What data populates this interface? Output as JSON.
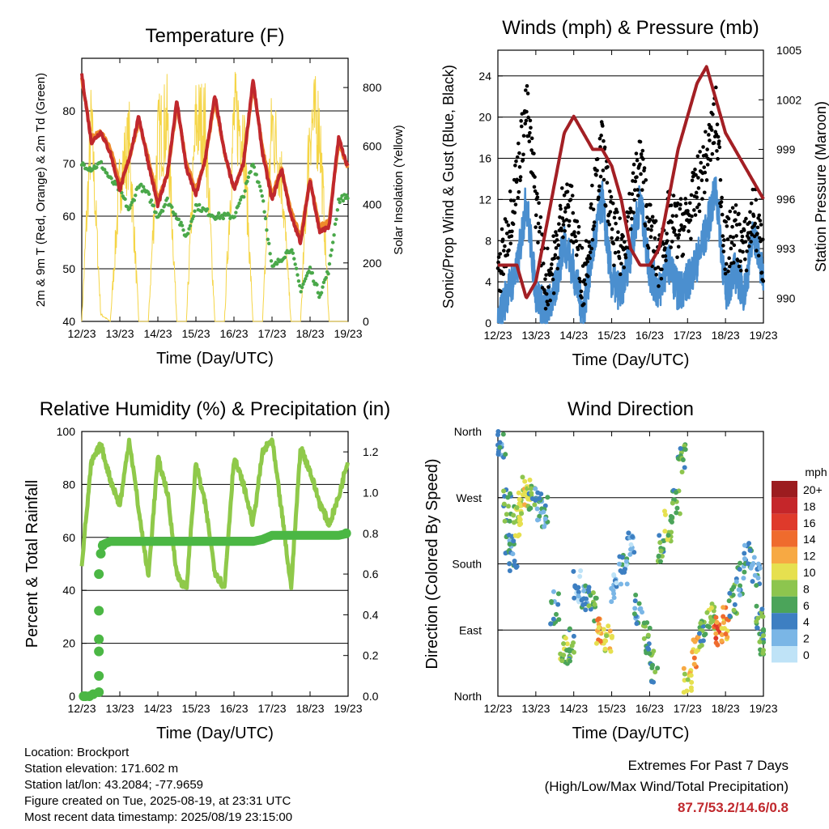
{
  "panels": {
    "temperature": {
      "title": "Temperature (F)",
      "ylabel_left": "2m & 9m T (Red, Orange) & 2m Td (Green)",
      "ylabel_right": "Solar Insolation (Yellow)",
      "xlabel": "Time (Day/UTC)",
      "ylim": [
        40,
        90
      ],
      "y2lim": [
        0,
        900
      ],
      "yticks": [
        "40",
        "50",
        "60",
        "70",
        "80"
      ],
      "y2ticks": [
        "0",
        "200",
        "400",
        "600",
        "800"
      ]
    },
    "winds": {
      "title": "Winds (mph) & Pressure (mb)",
      "ylabel_left": "Sonic/Prop Wind & Gust (Blue, Black)",
      "ylabel_right": "Station Pressure (Maroon)",
      "xlabel": "Time (Day/UTC)",
      "ylim": [
        0,
        26.5
      ],
      "y2lim": [
        988.5,
        1005
      ],
      "yticks": [
        "0",
        "4",
        "8",
        "12",
        "16",
        "20",
        "24"
      ],
      "y2ticks": [
        "990",
        "993",
        "996",
        "999",
        "1002",
        "1005"
      ]
    },
    "humidity": {
      "title": "Relative Humidity (%) & Precipitation (in)",
      "ylabel_left": "Percent & Total Rainfall",
      "xlabel": "Time (Day/UTC)",
      "ylim": [
        0,
        100
      ],
      "y2lim": [
        0,
        1.3
      ],
      "yticks": [
        "0",
        "20",
        "40",
        "60",
        "80",
        "100"
      ],
      "y2ticks": [
        "0.0",
        "0.2",
        "0.4",
        "0.6",
        "0.8",
        "1.0",
        "1.2"
      ]
    },
    "direction": {
      "title": "Wind Direction",
      "ylabel_left": "Direction (Colored By Speed)",
      "xlabel": "Time (Day/UTC)",
      "yticks": [
        "North",
        "East",
        "South",
        "West",
        "North"
      ],
      "legend_title": "mph",
      "legend_labels": [
        "20+",
        "18",
        "16",
        "14",
        "12",
        "10",
        "8",
        "6",
        "4",
        "2",
        "0"
      ],
      "legend_colors": [
        "#9c1c1f",
        "#c5262a",
        "#df3a2b",
        "#ef6b2d",
        "#f7a943",
        "#e6e04f",
        "#8dc54e",
        "#4ba45a",
        "#3d7fc2",
        "#7ab6e6",
        "#bfe3f7"
      ]
    }
  },
  "xticks": [
    "12/23",
    "13/23",
    "14/23",
    "15/23",
    "16/23",
    "17/23",
    "18/23",
    "19/23"
  ],
  "info": {
    "location": "Location: Brockport",
    "elevation": "Station elevation: 171.602 m",
    "latlon": "Station lat/lon: 43.2084; -77.9659",
    "created": "Figure created on Tue, 2025-08-19, at 23:31 UTC",
    "recent": "Most recent data timestamp: 2025/08/19 23:15:00"
  },
  "extremes": {
    "line1": "Extremes For Past 7 Days",
    "line2": "(High/Low/Max Wind/Total Precipitation)",
    "values": "87.7/53.2/14.6/0.8"
  },
  "chart_data": [
    {
      "type": "line",
      "title": "Temperature (F)",
      "x_unit": "day of month (Aug 2025, UTC)",
      "x": [
        12,
        12.25,
        12.5,
        12.75,
        13,
        13.25,
        13.5,
        13.75,
        14,
        14.25,
        14.5,
        14.75,
        15,
        15.25,
        15.5,
        15.75,
        16,
        16.25,
        16.5,
        16.75,
        17,
        17.25,
        17.5,
        17.75,
        18,
        18.25,
        18.5,
        18.75,
        19
      ],
      "series": [
        {
          "name": "2m T",
          "color": "#c0282d",
          "values": [
            87,
            74,
            76,
            72,
            65,
            71,
            79,
            70,
            62,
            68,
            82,
            69,
            64,
            71,
            83,
            72,
            65,
            70,
            86,
            72,
            63,
            69,
            60,
            55,
            67,
            57,
            58,
            75,
            69
          ]
        },
        {
          "name": "9m T",
          "color": "#ef8a2b",
          "values": [
            86,
            75,
            76,
            73,
            66,
            71,
            78,
            71,
            63,
            68,
            81,
            70,
            65,
            71,
            82,
            72,
            65,
            70,
            85,
            73,
            64,
            69,
            61,
            56,
            67,
            58,
            59,
            74,
            69
          ]
        },
        {
          "name": "2m Td",
          "color": "#4aa84a",
          "values": [
            70,
            69,
            70,
            67,
            65,
            61,
            66,
            64,
            60,
            63,
            60,
            56,
            62,
            61,
            60,
            60,
            60,
            64,
            70,
            64,
            50,
            52,
            54,
            46,
            50,
            45,
            50,
            63,
            64
          ]
        },
        {
          "name": "Solar Insolation",
          "axis": "right",
          "color": "#f5d547",
          "values": [
            0,
            850,
            30,
            0,
            600,
            760,
            0,
            0,
            780,
            850,
            0,
            0,
            850,
            830,
            0,
            0,
            870,
            820,
            0,
            0,
            850,
            620,
            0,
            0,
            850,
            840,
            0,
            0,
            0
          ]
        }
      ]
    },
    {
      "type": "line",
      "title": "Winds (mph) & Pressure (mb)",
      "x_unit": "day of month (Aug 2025, UTC)",
      "x": [
        12,
        12.25,
        12.5,
        12.75,
        13,
        13.25,
        13.5,
        13.75,
        14,
        14.25,
        14.5,
        14.75,
        15,
        15.25,
        15.5,
        15.75,
        16,
        16.25,
        16.5,
        16.75,
        17,
        17.25,
        17.5,
        17.75,
        18,
        18.25,
        18.5,
        18.75,
        19
      ],
      "series": [
        {
          "name": "Sonic/Prop Wind",
          "color": "#4b8fcf",
          "values": [
            0,
            3,
            5,
            12,
            3,
            1,
            3,
            8,
            5,
            1,
            7,
            12,
            4,
            3,
            7,
            12,
            5,
            3,
            6,
            3,
            4,
            6,
            9,
            13,
            3,
            5,
            3,
            9,
            4
          ]
        },
        {
          "name": "Gust",
          "color": "#000000",
          "values": [
            4,
            9,
            14,
            21,
            12,
            4,
            6,
            12,
            10,
            4,
            11,
            17,
            9,
            7,
            11,
            16,
            9,
            6,
            10,
            9,
            10,
            13,
            16,
            20,
            7,
            9,
            7,
            11,
            6
          ]
        },
        {
          "name": "Station Pressure",
          "axis": "right",
          "color": "#a31f24",
          "values": [
            992,
            992,
            992,
            990,
            991,
            994,
            997,
            1000,
            1001,
            1000,
            999,
            999,
            998,
            996,
            993,
            992,
            992,
            993,
            996,
            999,
            1001,
            1003,
            1004,
            1002,
            1000,
            999,
            998,
            997,
            996
          ]
        }
      ]
    },
    {
      "type": "line",
      "title": "Relative Humidity (%) & Precipitation (in)",
      "x_unit": "day of month (Aug 2025, UTC)",
      "x": [
        12,
        12.25,
        12.5,
        12.75,
        13,
        13.25,
        13.5,
        13.75,
        14,
        14.25,
        14.5,
        14.75,
        15,
        15.25,
        15.5,
        15.75,
        16,
        16.25,
        16.5,
        16.75,
        17,
        17.25,
        17.5,
        17.75,
        18,
        18.25,
        18.5,
        18.75,
        19
      ],
      "series": [
        {
          "name": "Relative Humidity",
          "color": "#8fc94a",
          "values": [
            50,
            88,
            95,
            82,
            72,
            97,
            70,
            45,
            90,
            77,
            46,
            40,
            88,
            72,
            47,
            41,
            90,
            80,
            65,
            92,
            97,
            70,
            41,
            94,
            85,
            73,
            65,
            75,
            90
          ]
        },
        {
          "name": "Total Rainfall",
          "axis": "right",
          "color": "#4bb744",
          "values": [
            0,
            0,
            0.74,
            0.76,
            0.76,
            0.76,
            0.76,
            0.76,
            0.76,
            0.76,
            0.76,
            0.76,
            0.76,
            0.76,
            0.76,
            0.76,
            0.76,
            0.76,
            0.76,
            0.77,
            0.79,
            0.79,
            0.79,
            0.79,
            0.79,
            0.79,
            0.79,
            0.79,
            0.8
          ]
        }
      ]
    },
    {
      "type": "scatter",
      "title": "Wind Direction",
      "x_unit": "day of month (Aug 2025, UTC)",
      "y_unit": "direction (North/East/South/West/North)",
      "points": [
        [
          12.1,
          340,
          4
        ],
        [
          12.25,
          260,
          6
        ],
        [
          12.3,
          200,
          4
        ],
        [
          12.4,
          190,
          4
        ],
        [
          12.5,
          240,
          8
        ],
        [
          12.6,
          260,
          10
        ],
        [
          12.75,
          280,
          10
        ],
        [
          12.9,
          270,
          6
        ],
        [
          13.05,
          260,
          4
        ],
        [
          13.2,
          250,
          4
        ],
        [
          13.5,
          120,
          4
        ],
        [
          13.75,
          60,
          8
        ],
        [
          13.9,
          70,
          6
        ],
        [
          14.1,
          150,
          2
        ],
        [
          14.3,
          140,
          4
        ],
        [
          14.5,
          120,
          6
        ],
        [
          14.7,
          90,
          12
        ],
        [
          14.9,
          80,
          10
        ],
        [
          15.1,
          150,
          2
        ],
        [
          15.3,
          170,
          4
        ],
        [
          15.5,
          200,
          2
        ],
        [
          15.7,
          120,
          4
        ],
        [
          15.9,
          80,
          6
        ],
        [
          16.1,
          40,
          6
        ],
        [
          16.3,
          200,
          6
        ],
        [
          16.5,
          230,
          8
        ],
        [
          16.7,
          260,
          6
        ],
        [
          16.85,
          320,
          6
        ],
        [
          17.0,
          20,
          10
        ],
        [
          17.2,
          60,
          12
        ],
        [
          17.4,
          80,
          6
        ],
        [
          17.6,
          110,
          8
        ],
        [
          17.8,
          90,
          14
        ],
        [
          18.0,
          100,
          12
        ],
        [
          18.2,
          130,
          6
        ],
        [
          18.4,
          160,
          4
        ],
        [
          18.6,
          190,
          4
        ],
        [
          18.8,
          170,
          4
        ],
        [
          18.9,
          100,
          6
        ],
        [
          19.0,
          70,
          6
        ]
      ]
    }
  ]
}
